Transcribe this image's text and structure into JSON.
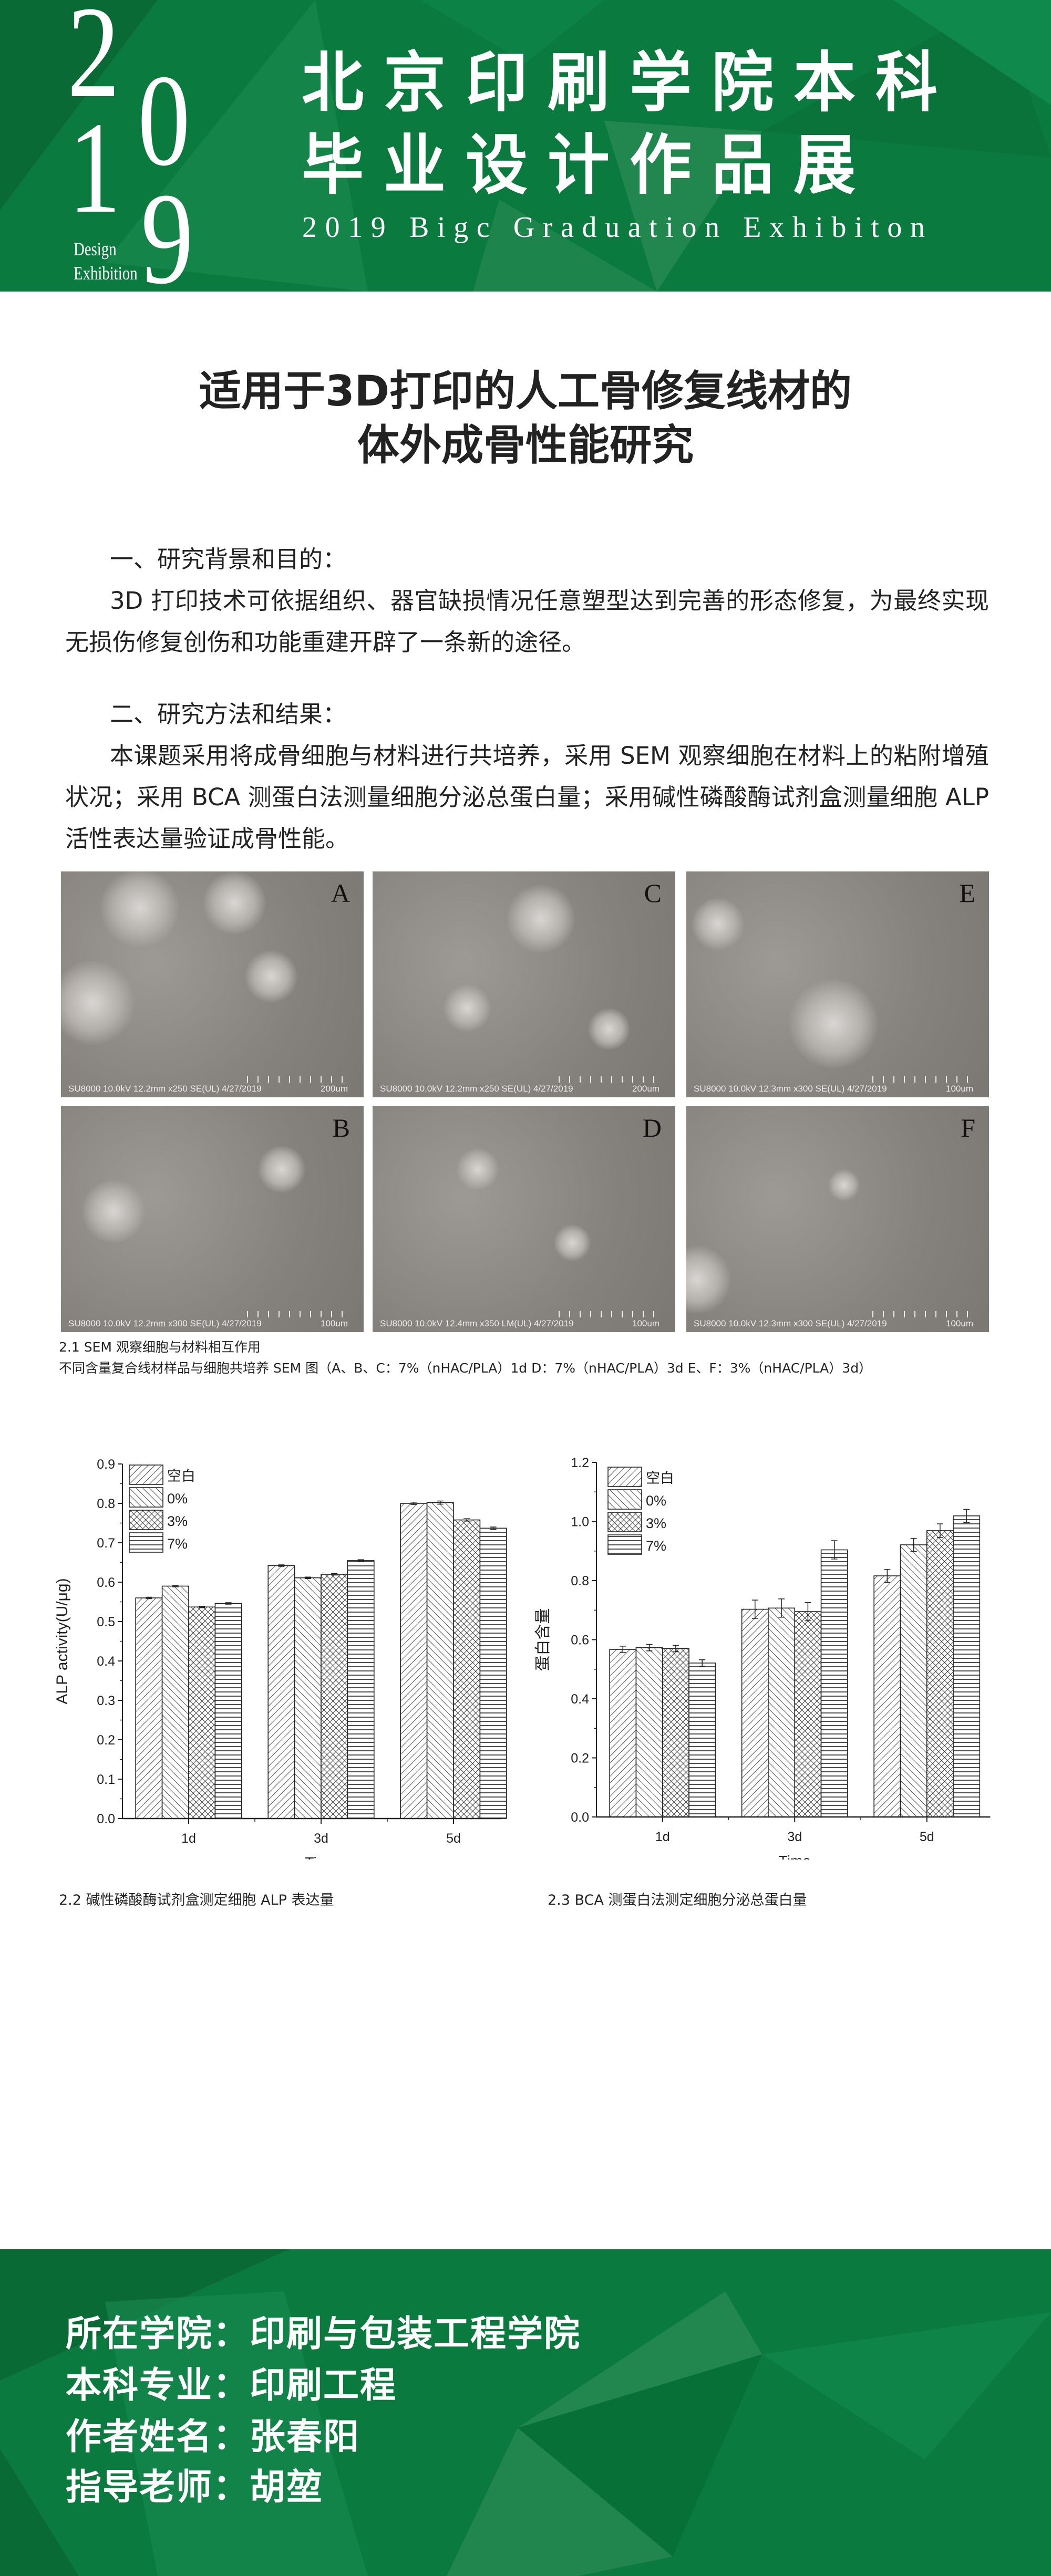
{
  "header": {
    "year_digits": [
      "2",
      "0",
      "1",
      "9"
    ],
    "design": "Design",
    "exhibition": "Exhibition",
    "title_line1": "北京印刷学院本科",
    "title_line2": "毕业设计作品展",
    "subtitle": "2019 Bigc Graduation Exhibiton",
    "color": "#0b7a3e"
  },
  "paper": {
    "title_line1": "适用于3D打印的人工骨修复线材的",
    "title_line2": "体外成骨性能研究",
    "section1_heading": "一、研究背景和目的：",
    "section1_text": "3D 打印技术可依据组织、器官缺损情况任意塑型达到完善的形态修复，为最终实现无损伤修复创伤和功能重建开辟了一条新的途径。",
    "section2_heading": "二、研究方法和结果：",
    "section2_text": "本课题采用将成骨细胞与材料进行共培养，采用 SEM 观察细胞在材料上的粘附增殖状况；采用 BCA 测蛋白法测量细胞分泌总蛋白量；采用碱性磷酸酶试剂盒测量细胞 ALP 活性表达量验证成骨性能。"
  },
  "sem_images": [
    {
      "label": "A",
      "info": "SU8000 10.0kV 12.2mm x250 SE(UL) 4/27/2019",
      "scale": "200um"
    },
    {
      "label": "C",
      "info": "SU8000 10.0kV 12.2mm x250 SE(UL) 4/27/2019",
      "scale": "200um"
    },
    {
      "label": "E",
      "info": "SU8000 10.0kV 12.3mm x300 SE(UL) 4/27/2019",
      "scale": "100um"
    },
    {
      "label": "B",
      "info": "SU8000 10.0kV 12.2mm x300 SE(UL) 4/27/2019",
      "scale": "100um"
    },
    {
      "label": "D",
      "info": "SU8000 10.0kV 12.4mm x350 LM(UL) 4/27/2019",
      "scale": "100um"
    },
    {
      "label": "F",
      "info": "SU8000 10.0kV 12.3mm x300 SE(UL) 4/27/2019",
      "scale": "100um"
    }
  ],
  "sem_caption1": "2.1 SEM 观察细胞与材料相互作用",
  "sem_caption2": "不同含量复合线材样品与细胞共培养 SEM 图（A、B、C：7%（nHAC/PLA）1d D：7%（nHAC/PLA）3d E、F：3%（nHAC/PLA）3d）",
  "chart_data": [
    {
      "type": "bar",
      "title": "",
      "caption": "2.2 碱性磷酸酶试剂盒测定细胞 ALP 表达量",
      "xlabel": "Time",
      "ylabel": "ALP activity(U/μg)",
      "categories": [
        "1d",
        "3d",
        "5d"
      ],
      "ylim": [
        0,
        0.9
      ],
      "yticks": [
        "0.0",
        "0.1",
        "0.2",
        "0.3",
        "0.4",
        "0.5",
        "0.6",
        "0.7",
        "0.8",
        "0.9"
      ],
      "legend": "top-left",
      "series": [
        {
          "name": "空白",
          "pattern": "diagonal-right",
          "values": [
            0.56,
            0.642,
            0.8
          ],
          "errors": [
            0.002,
            0.002,
            0.003
          ]
        },
        {
          "name": "0%",
          "pattern": "diagonal-left",
          "values": [
            0.59,
            0.611,
            0.802
          ],
          "errors": [
            0.002,
            0.002,
            0.004
          ]
        },
        {
          "name": "3%",
          "pattern": "crosshatch",
          "values": [
            0.537,
            0.62,
            0.758
          ],
          "errors": [
            0.002,
            0.002,
            0.003
          ]
        },
        {
          "name": "7%",
          "pattern": "horizontal",
          "values": [
            0.546,
            0.655,
            0.737
          ],
          "errors": [
            0.002,
            0.002,
            0.003
          ]
        }
      ]
    },
    {
      "type": "bar",
      "title": "",
      "caption": "2.3 BCA 测蛋白法测定细胞分泌总蛋白量",
      "xlabel": "Time",
      "ylabel": "蛋白含量",
      "categories": [
        "1d",
        "3d",
        "5d"
      ],
      "ylim": [
        0,
        1.2
      ],
      "yticks": [
        "0.0",
        "0.2",
        "0.4",
        "0.6",
        "0.8",
        "1.0",
        "1.2"
      ],
      "legend": "top-left",
      "series": [
        {
          "name": "空白",
          "pattern": "diagonal-right",
          "values": [
            0.567,
            0.703,
            0.816
          ],
          "errors": [
            0.011,
            0.031,
            0.022
          ]
        },
        {
          "name": "0%",
          "pattern": "diagonal-left",
          "values": [
            0.573,
            0.707,
            0.921
          ],
          "errors": [
            0.011,
            0.031,
            0.022
          ]
        },
        {
          "name": "3%",
          "pattern": "crosshatch",
          "values": [
            0.57,
            0.695,
            0.969
          ],
          "errors": [
            0.011,
            0.031,
            0.023
          ]
        },
        {
          "name": "7%",
          "pattern": "horizontal",
          "values": [
            0.521,
            0.904,
            1.019
          ],
          "errors": [
            0.011,
            0.031,
            0.022
          ]
        }
      ]
    }
  ],
  "footer": {
    "college": "所在学院：印刷与包装工程学院",
    "major": "本科专业：印刷工程",
    "author": "作者姓名：张春阳",
    "advisor": "指导老师：胡堃"
  }
}
